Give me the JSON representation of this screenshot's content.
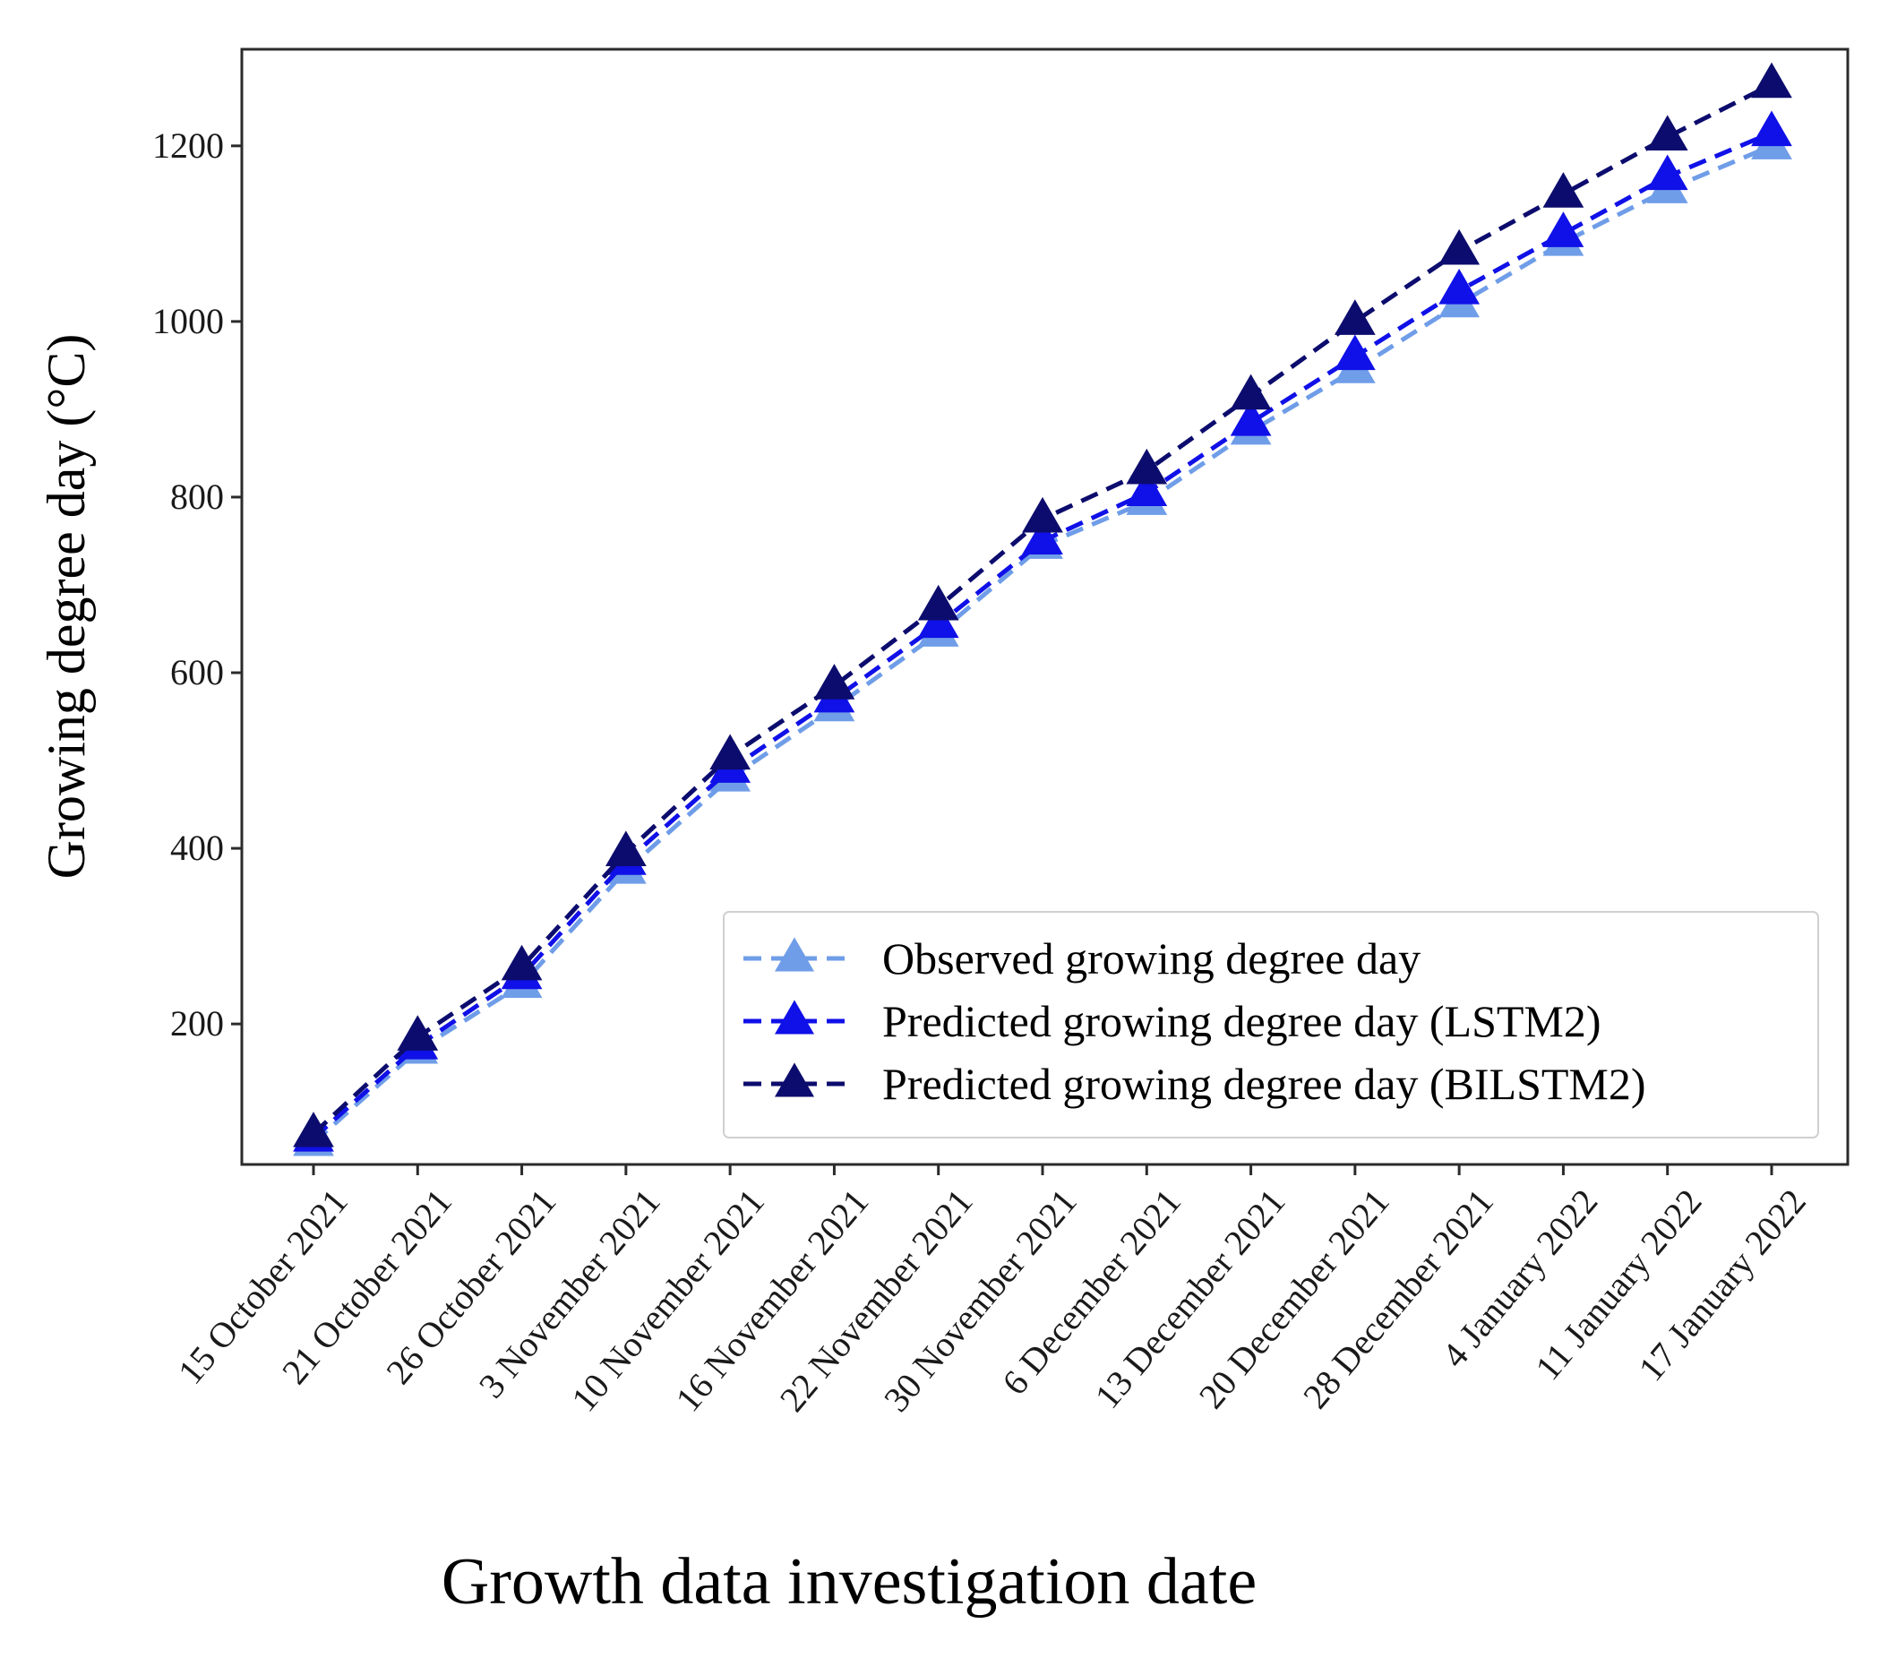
{
  "chart_data": {
    "type": "line",
    "title": "",
    "xlabel": "Growth data investigation date",
    "ylabel": "Growing degree day (°C)",
    "categories": [
      "15 October 2021",
      "21 October 2021",
      "26 October 2021",
      "3 November 2021",
      "10 November 2021",
      "16 November 2021",
      "22 November 2021",
      "30 November 2021",
      "6 December 2021",
      "13 December 2021",
      "20 December 2021",
      "28 December 2021",
      "4 January 2022",
      "11 January 2022",
      "17 January 2022"
    ],
    "ylim": [
      40,
      1310
    ],
    "yticks": [
      200,
      400,
      600,
      800,
      1000,
      1200
    ],
    "grid": false,
    "legend_position": "lower-right",
    "series": [
      {
        "name": "Observed growing degree day",
        "color": "#6f9de8",
        "marker": "triangle",
        "linestyle": "dashed",
        "values": [
          65,
          170,
          245,
          375,
          480,
          560,
          645,
          745,
          795,
          875,
          945,
          1020,
          1090,
          1150,
          1200
        ]
      },
      {
        "name": "Predicted growing degree day (LSTM2)",
        "color": "#1010e8",
        "marker": "triangle",
        "linestyle": "dashed",
        "values": [
          70,
          175,
          255,
          385,
          490,
          570,
          655,
          750,
          805,
          885,
          960,
          1035,
          1100,
          1165,
          1215
        ]
      },
      {
        "name": "Predicted growing degree day (BILSTM2)",
        "color": "#0c0c6e",
        "marker": "triangle",
        "linestyle": "dashed",
        "values": [
          75,
          185,
          265,
          395,
          505,
          585,
          675,
          775,
          830,
          915,
          1000,
          1080,
          1145,
          1210,
          1270
        ]
      }
    ]
  }
}
